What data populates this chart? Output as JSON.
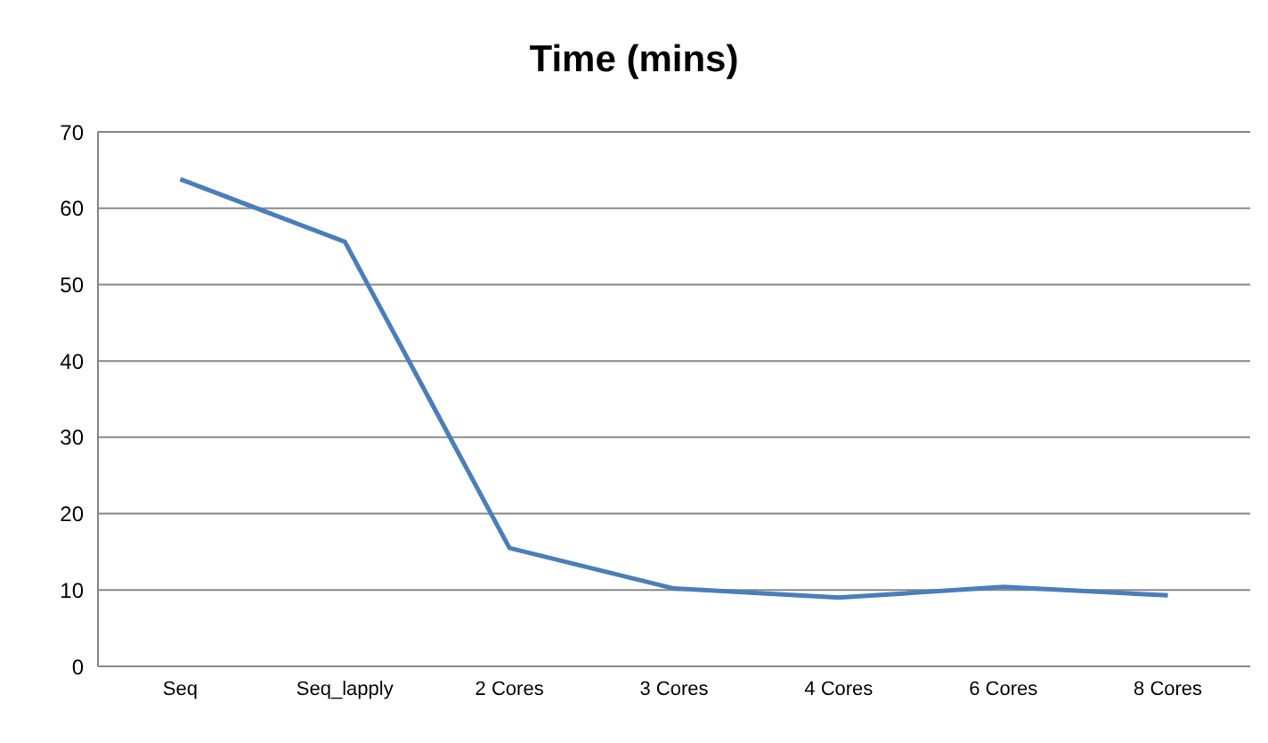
{
  "chart_data": {
    "type": "line",
    "title": "Time (mins)",
    "categories": [
      "Seq",
      "Seq_lapply",
      "2 Cores",
      "3 Cores",
      "4 Cores",
      "6 Cores",
      "8 Cores"
    ],
    "series": [
      {
        "color": "#4a7ebb",
        "values": [
          63.8,
          55.6,
          15.5,
          10.2,
          9.0,
          10.4,
          9.3
        ]
      }
    ],
    "ylim": [
      0,
      70
    ],
    "yticks": [
      0,
      10,
      20,
      30,
      40,
      50,
      60,
      70
    ],
    "grid": "y",
    "marker": "none",
    "line_style": "solid"
  }
}
